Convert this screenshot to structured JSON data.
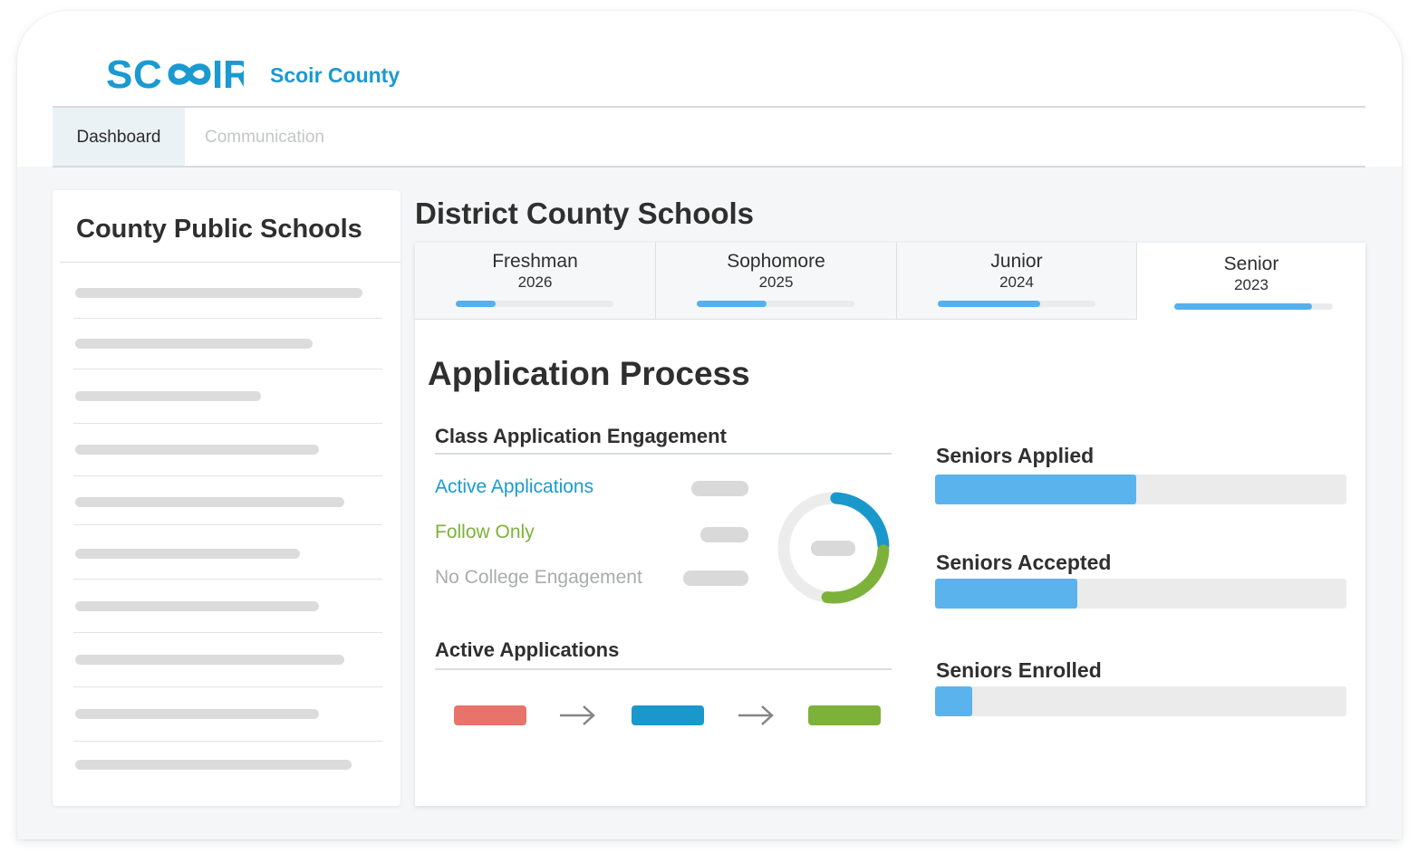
{
  "header": {
    "logo_text": "SCOIR",
    "org_name": "Scoir County",
    "brand_color": "#1a9ad0"
  },
  "nav": {
    "tabs": [
      {
        "label": "Dashboard",
        "active": true
      },
      {
        "label": "Communication",
        "active": false
      }
    ]
  },
  "sidebar": {
    "title": "County Public Schools",
    "rows": 10
  },
  "main": {
    "title": "District County Schools",
    "class_tabs": [
      {
        "name": "Freshman",
        "year": "2026",
        "progress": 0.25,
        "active": false
      },
      {
        "name": "Sophomore",
        "year": "2025",
        "progress": 0.44,
        "active": false
      },
      {
        "name": "Junior",
        "year": "2024",
        "progress": 0.65,
        "active": false
      },
      {
        "name": "Senior",
        "year": "2023",
        "progress": 0.87,
        "active": true
      }
    ],
    "section_title": "Application Process",
    "engagement": {
      "title": "Class Application Engagement",
      "legend": [
        {
          "label": "Active Applications",
          "color": "#1a9ad0"
        },
        {
          "label": "Follow Only",
          "color": "#7db23a"
        },
        {
          "label": "No College Engagement",
          "color": "#a9abad"
        }
      ],
      "donut": {
        "active": 0.25,
        "follow": 0.27,
        "none": 0.48
      },
      "donut_colors": {
        "active": "#1a98cc",
        "follow": "#7db23a",
        "none": "#ececec"
      }
    },
    "active_apps": {
      "title": "Active Applications",
      "stages": [
        {
          "color": "#e8736a"
        },
        {
          "color": "#1a98cc"
        },
        {
          "color": "#7db23a"
        }
      ]
    },
    "stats": [
      {
        "label": "Seniors Applied",
        "value": 0.49
      },
      {
        "label": "Seniors Accepted",
        "value": 0.345
      },
      {
        "label": "Seniors Enrolled",
        "value": 0.09
      }
    ]
  }
}
